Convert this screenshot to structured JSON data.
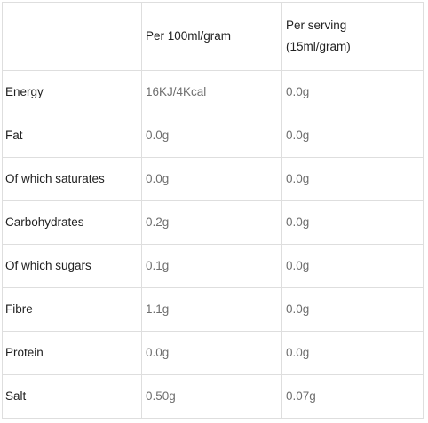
{
  "table": {
    "headers": {
      "nutrient": "",
      "per_100": "Per 100ml/gram",
      "per_serving_line1": "Per serving",
      "per_serving_line2": "(15ml/gram)"
    },
    "rows": [
      {
        "nutrient": "Energy",
        "per_100": "16KJ/4Kcal",
        "per_serving": "0.0g"
      },
      {
        "nutrient": "Fat",
        "per_100": "0.0g",
        "per_serving": "0.0g"
      },
      {
        "nutrient": "Of which saturates",
        "per_100": "0.0g",
        "per_serving": "0.0g"
      },
      {
        "nutrient": "Carbohydrates",
        "per_100": "0.2g",
        "per_serving": "0.0g"
      },
      {
        "nutrient": "Of which sugars",
        "per_100": "0.1g",
        "per_serving": "0.0g"
      },
      {
        "nutrient": "Fibre",
        "per_100": "1.1g",
        "per_serving": "0.0g"
      },
      {
        "nutrient": "Protein",
        "per_100": "0.0g",
        "per_serving": "0.0g"
      },
      {
        "nutrient": "Salt",
        "per_100": "0.50g",
        "per_serving": "0.07g"
      }
    ]
  },
  "colors": {
    "border": "#dedede",
    "label_text": "#1f1f1f",
    "value_text": "#6f6f6f"
  }
}
